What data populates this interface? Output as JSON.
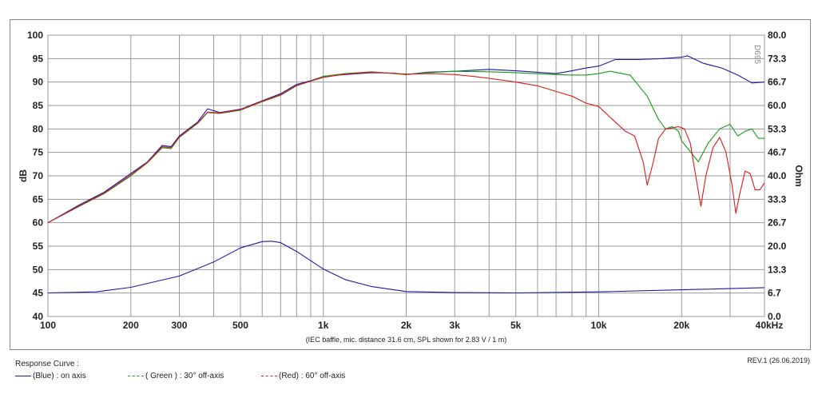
{
  "chart_data": {
    "type": "line",
    "xscale": "log",
    "xlim": [
      100,
      40000
    ],
    "ylim_left": [
      40,
      100
    ],
    "ylim_right": [
      0.0,
      80.0
    ],
    "ylabel_left": "dB",
    "ylabel_right": "Ohm",
    "x_ticks": [
      {
        "v": 100,
        "label": "100"
      },
      {
        "v": 200,
        "label": "200"
      },
      {
        "v": 300,
        "label": "300"
      },
      {
        "v": 500,
        "label": "500"
      },
      {
        "v": 1000,
        "label": "1k"
      },
      {
        "v": 2000,
        "label": "2k"
      },
      {
        "v": 3000,
        "label": "3k"
      },
      {
        "v": 5000,
        "label": "5k"
      },
      {
        "v": 10000,
        "label": "10k"
      },
      {
        "v": 20000,
        "label": "20k"
      },
      {
        "v": 40000,
        "label": "40kHz"
      }
    ],
    "y_ticks_left": [
      "40",
      "45",
      "50",
      "55",
      "60",
      "65",
      "70",
      "75",
      "80",
      "85",
      "90",
      "95",
      "100"
    ],
    "y_ticks_right": [
      "0.0",
      "6.7",
      "13.3",
      "20.0",
      "26.7",
      "33.3",
      "40.0",
      "46.7",
      "53.3",
      "60.0",
      "66.7",
      "73.3",
      "80.0"
    ],
    "grid": true,
    "annotation": "(IEC baffle, mic. distance 31.6 cm, SPL shown for 2.83 V / 1 m)",
    "watermark": "D695",
    "series": [
      {
        "name": "( Blue ) : on axis",
        "color": "#1a1aa8",
        "axis": "left",
        "points": [
          [
            100,
            60
          ],
          [
            130,
            63.8
          ],
          [
            160,
            66.5
          ],
          [
            200,
            70.5
          ],
          [
            230,
            73
          ],
          [
            260,
            76.5
          ],
          [
            280,
            76.2
          ],
          [
            300,
            78.5
          ],
          [
            350,
            81.5
          ],
          [
            380,
            84.3
          ],
          [
            420,
            83.5
          ],
          [
            500,
            84.2
          ],
          [
            600,
            86
          ],
          [
            700,
            87.5
          ],
          [
            800,
            89.5
          ],
          [
            900,
            90.3
          ],
          [
            1000,
            91.2
          ],
          [
            1200,
            91.6
          ],
          [
            1500,
            92
          ],
          [
            1800,
            91.9
          ],
          [
            2000,
            91.6
          ],
          [
            2400,
            92.1
          ],
          [
            3000,
            92.3
          ],
          [
            4000,
            92.7
          ],
          [
            5000,
            92.4
          ],
          [
            7000,
            91.8
          ],
          [
            8000,
            92.4
          ],
          [
            9000,
            93
          ],
          [
            10000,
            93.4
          ],
          [
            11500,
            94.8
          ],
          [
            14000,
            94.8
          ],
          [
            17000,
            95
          ],
          [
            20000,
            95.3
          ],
          [
            21000,
            95.6
          ],
          [
            24000,
            94
          ],
          [
            28000,
            93
          ],
          [
            32000,
            91.5
          ],
          [
            36000,
            89.8
          ],
          [
            40000,
            90
          ]
        ]
      },
      {
        "name": "( Green ) : 30° off-axis",
        "color": "#1a9a1a",
        "axis": "left",
        "points": [
          [
            100,
            60
          ],
          [
            130,
            63.5
          ],
          [
            160,
            66.2
          ],
          [
            200,
            70
          ],
          [
            230,
            72.8
          ],
          [
            260,
            76
          ],
          [
            280,
            75.8
          ],
          [
            300,
            78.2
          ],
          [
            350,
            81.2
          ],
          [
            380,
            83.5
          ],
          [
            420,
            83.3
          ],
          [
            500,
            84
          ],
          [
            600,
            85.8
          ],
          [
            700,
            87.2
          ],
          [
            800,
            89.2
          ],
          [
            900,
            90.2
          ],
          [
            1000,
            91.2
          ],
          [
            1200,
            91.8
          ],
          [
            1500,
            92.2
          ],
          [
            2000,
            91.6
          ],
          [
            2400,
            92
          ],
          [
            3000,
            92.3
          ],
          [
            4000,
            92.2
          ],
          [
            5000,
            92
          ],
          [
            7000,
            91.6
          ],
          [
            8000,
            91.5
          ],
          [
            9000,
            91.5
          ],
          [
            10000,
            91.8
          ],
          [
            11000,
            92.3
          ],
          [
            13000,
            91.5
          ],
          [
            15000,
            87
          ],
          [
            16500,
            82
          ],
          [
            17500,
            80
          ],
          [
            18500,
            80.5
          ],
          [
            19500,
            79.5
          ],
          [
            20000,
            77.5
          ],
          [
            23000,
            73
          ],
          [
            25000,
            77
          ],
          [
            27500,
            80
          ],
          [
            30000,
            81
          ],
          [
            32000,
            78.5
          ],
          [
            34000,
            79.5
          ],
          [
            36000,
            80
          ],
          [
            38000,
            78
          ],
          [
            40000,
            78
          ]
        ]
      },
      {
        "name": "( Red ) : 60° off-axis",
        "color": "#dd1a1a",
        "axis": "left",
        "points": [
          [
            100,
            60
          ],
          [
            130,
            63.6
          ],
          [
            160,
            66.3
          ],
          [
            200,
            70.2
          ],
          [
            230,
            72.9
          ],
          [
            260,
            76.2
          ],
          [
            280,
            76
          ],
          [
            300,
            78.3
          ],
          [
            350,
            81.3
          ],
          [
            380,
            83.6
          ],
          [
            420,
            83.4
          ],
          [
            500,
            84.1
          ],
          [
            600,
            85.9
          ],
          [
            700,
            87.3
          ],
          [
            800,
            89.3
          ],
          [
            900,
            90.2
          ],
          [
            1000,
            91
          ],
          [
            1200,
            91.7
          ],
          [
            1500,
            92.1
          ],
          [
            2000,
            91.7
          ],
          [
            2500,
            91.8
          ],
          [
            3000,
            91.6
          ],
          [
            3500,
            91.2
          ],
          [
            4000,
            90.8
          ],
          [
            5000,
            90
          ],
          [
            6000,
            89.2
          ],
          [
            7000,
            88
          ],
          [
            8000,
            87
          ],
          [
            9000,
            85.5
          ],
          [
            10000,
            84.8
          ],
          [
            11000,
            82.5
          ],
          [
            12500,
            79.5
          ],
          [
            13500,
            78.5
          ],
          [
            14500,
            73
          ],
          [
            15000,
            68
          ],
          [
            15800,
            73
          ],
          [
            16500,
            78
          ],
          [
            17500,
            80
          ],
          [
            18500,
            80.2
          ],
          [
            19500,
            80.5
          ],
          [
            20500,
            80
          ],
          [
            21500,
            77
          ],
          [
            22500,
            70
          ],
          [
            23500,
            63.5
          ],
          [
            24500,
            70
          ],
          [
            26000,
            76
          ],
          [
            27500,
            78.2
          ],
          [
            29000,
            75
          ],
          [
            30500,
            68
          ],
          [
            31500,
            62
          ],
          [
            32500,
            66
          ],
          [
            34000,
            71
          ],
          [
            35500,
            70.5
          ],
          [
            37000,
            67
          ],
          [
            38500,
            67
          ],
          [
            40000,
            68.5
          ]
        ]
      },
      {
        "name": "Impedance",
        "color": "#1a1aa8",
        "axis": "right",
        "points": [
          [
            100,
            6.7
          ],
          [
            150,
            7.0
          ],
          [
            200,
            8.3
          ],
          [
            300,
            11.5
          ],
          [
            400,
            15.5
          ],
          [
            500,
            19.5
          ],
          [
            600,
            21.3
          ],
          [
            650,
            21.4
          ],
          [
            700,
            21.0
          ],
          [
            800,
            18.5
          ],
          [
            1000,
            13.5
          ],
          [
            1200,
            10.5
          ],
          [
            1500,
            8.5
          ],
          [
            2000,
            7.1
          ],
          [
            3000,
            6.8
          ],
          [
            5000,
            6.7
          ],
          [
            10000,
            7.0
          ],
          [
            20000,
            7.6
          ],
          [
            40000,
            8.2
          ]
        ]
      }
    ]
  },
  "legend": {
    "title": "Response Curve :",
    "items": [
      {
        "label": "(Blue)  : on axis",
        "color": "#1a1aa8",
        "dash": false
      },
      {
        "label": "( Green ) : 30° off-axis",
        "color": "#1a9a1a",
        "dash": true
      },
      {
        "label": "(Red) : 60° off-axis",
        "color": "#dd1a1a",
        "dash": true
      }
    ]
  },
  "revision": "REV.1 (26.06.2019)"
}
